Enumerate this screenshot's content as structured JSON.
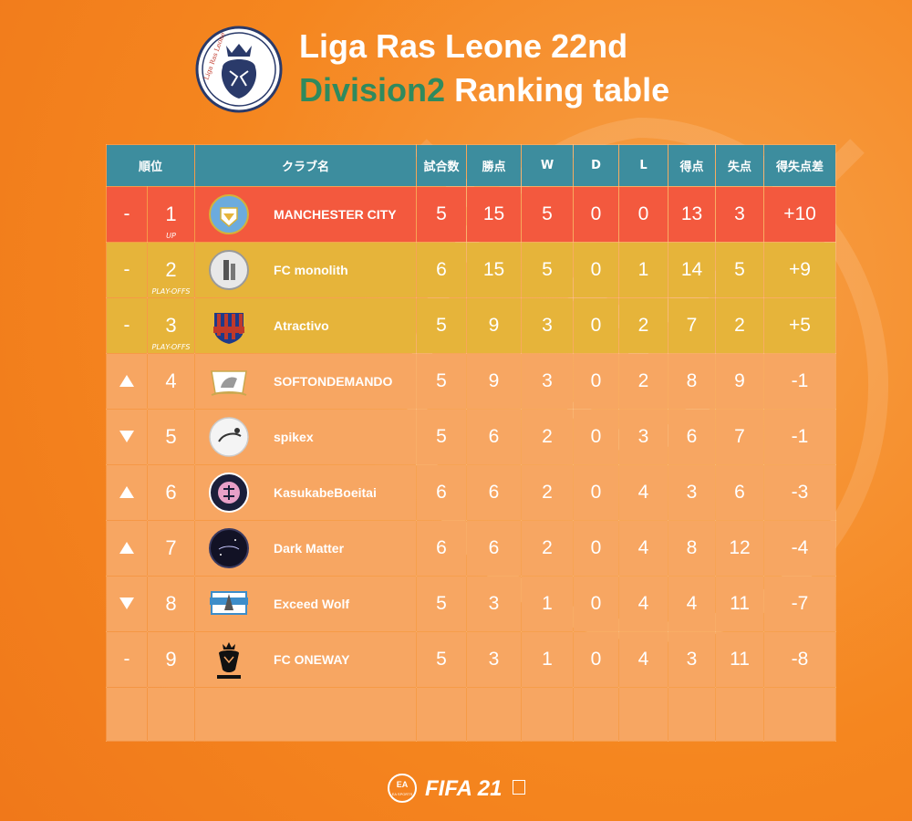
{
  "header": {
    "logo_text": "Liga Ras Leone",
    "title_line1": "Liga Ras Leone 22nd",
    "title_accent": "Division2",
    "title_rest": " Ranking table"
  },
  "table": {
    "columns": [
      "順位",
      "クラブ名",
      "試合数",
      "勝点",
      "W",
      "D",
      "L",
      "得点",
      "失点",
      "得失点差"
    ],
    "rows": [
      {
        "trend": "-",
        "pos": "1",
        "zone": "UP",
        "club": "MANCHESTER CITY",
        "crest": "manchester-city-crest",
        "played": "5",
        "pts": "15",
        "w": "5",
        "d": "0",
        "l": "0",
        "gf": "13",
        "ga": "3",
        "gd": "+10"
      },
      {
        "trend": "-",
        "pos": "2",
        "zone": "PLAY-OFFS",
        "club": "FC monolith",
        "crest": "fc-monolith-crest",
        "played": "6",
        "pts": "15",
        "w": "5",
        "d": "0",
        "l": "1",
        "gf": "14",
        "ga": "5",
        "gd": "+9"
      },
      {
        "trend": "-",
        "pos": "3",
        "zone": "PLAY-OFFS",
        "club": "Atractivo",
        "crest": "atractivo-crest",
        "played": "5",
        "pts": "9",
        "w": "3",
        "d": "0",
        "l": "2",
        "gf": "7",
        "ga": "2",
        "gd": "+5"
      },
      {
        "trend": "up",
        "pos": "4",
        "zone": "",
        "club": "SOFTONDEMANDO",
        "crest": "softondemando-crest",
        "played": "5",
        "pts": "9",
        "w": "3",
        "d": "0",
        "l": "2",
        "gf": "8",
        "ga": "9",
        "gd": "-1"
      },
      {
        "trend": "down",
        "pos": "5",
        "zone": "",
        "club": "spikex",
        "crest": "spikex-crest",
        "played": "5",
        "pts": "6",
        "w": "2",
        "d": "0",
        "l": "3",
        "gf": "6",
        "ga": "7",
        "gd": "-1"
      },
      {
        "trend": "up",
        "pos": "6",
        "zone": "",
        "club": "KasukabeBoeitai",
        "crest": "kasukabeboeitai-crest",
        "played": "6",
        "pts": "6",
        "w": "2",
        "d": "0",
        "l": "4",
        "gf": "3",
        "ga": "6",
        "gd": "-3"
      },
      {
        "trend": "up",
        "pos": "7",
        "zone": "",
        "club": "Dark Matter",
        "crest": "dark-matter-crest",
        "played": "6",
        "pts": "6",
        "w": "2",
        "d": "0",
        "l": "4",
        "gf": "8",
        "ga": "12",
        "gd": "-4"
      },
      {
        "trend": "down",
        "pos": "8",
        "zone": "",
        "club": "Exceed Wolf",
        "crest": "exceed-wolf-crest",
        "played": "5",
        "pts": "3",
        "w": "1",
        "d": "0",
        "l": "4",
        "gf": "4",
        "ga": "11",
        "gd": "-7"
      },
      {
        "trend": "-",
        "pos": "9",
        "zone": "",
        "club": "FC ONEWAY",
        "crest": "fc-oneway-crest",
        "played": "5",
        "pts": "3",
        "w": "1",
        "d": "0",
        "l": "4",
        "gf": "3",
        "ga": "11",
        "gd": "-8"
      }
    ]
  },
  "footer": {
    "ea_text": "EA SPORTS",
    "brand": "FIFA 21"
  },
  "colors": {
    "background": "#f5861f",
    "header_row": "#3d8d9e",
    "promotion_row": "#f3593e",
    "playoff_row": "#e6b43a",
    "normal_row": "#f7a662",
    "title_accent": "#2f8a5e"
  }
}
